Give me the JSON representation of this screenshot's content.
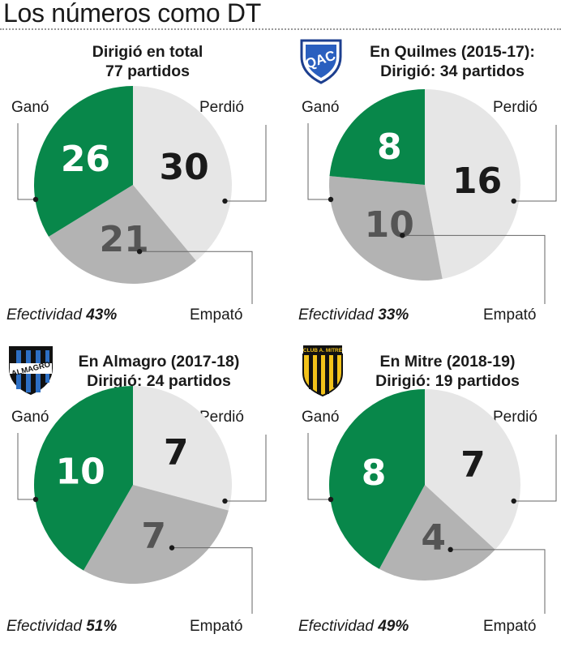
{
  "header": {
    "title": "Los números como DT"
  },
  "labels": {
    "won": "Ganó",
    "lost": "Perdió",
    "drawn": "Empató",
    "efficiency_prefix": "Efectividad "
  },
  "colors": {
    "won": "#08874a",
    "lost": "#e6e6e6",
    "drawn": "#b3b3b3",
    "won_text": "#ffffff",
    "lost_text": "#1a1a1a",
    "drawn_text": "#555555"
  },
  "panels": [
    {
      "id": "total",
      "title_line1": "Dirigió en total",
      "title_line2": "77 partidos",
      "crest": "none",
      "efficiency": "43%"
    },
    {
      "id": "quilmes",
      "title_line1": "En Quilmes (2015-17):",
      "title_line2": "Dirigió: 34 partidos",
      "crest": "quilmes-crest",
      "crest_text": "QAC",
      "efficiency": "33%"
    },
    {
      "id": "almagro",
      "title_line1": "En Almagro (2017-18)",
      "title_line2": "Dirigió: 24 partidos",
      "crest": "almagro-crest",
      "crest_text": "ALMAGRO",
      "efficiency": "51%"
    },
    {
      "id": "mitre",
      "title_line1": "En Mitre (2018-19)",
      "title_line2": "Dirigió:  19 partidos",
      "crest": "mitre-crest",
      "crest_text": "CLUB A. MITRE",
      "efficiency": "49%"
    }
  ],
  "chart_data": [
    {
      "type": "pie",
      "title": "Dirigió en total 77 partidos",
      "categories": [
        "Ganó",
        "Perdió",
        "Empató"
      ],
      "values": [
        26,
        30,
        21
      ]
    },
    {
      "type": "pie",
      "title": "En Quilmes (2015-17): Dirigió: 34 partidos",
      "categories": [
        "Ganó",
        "Perdió",
        "Empató"
      ],
      "values": [
        8,
        16,
        10
      ]
    },
    {
      "type": "pie",
      "title": "En Almagro (2017-18) Dirigió: 24 partidos",
      "categories": [
        "Ganó",
        "Perdió",
        "Empató"
      ],
      "values": [
        10,
        7,
        7
      ]
    },
    {
      "type": "pie",
      "title": "En Mitre (2018-19) Dirigió:  19 partidos",
      "categories": [
        "Ganó",
        "Perdió",
        "Empató"
      ],
      "values": [
        8,
        7,
        4
      ]
    }
  ]
}
